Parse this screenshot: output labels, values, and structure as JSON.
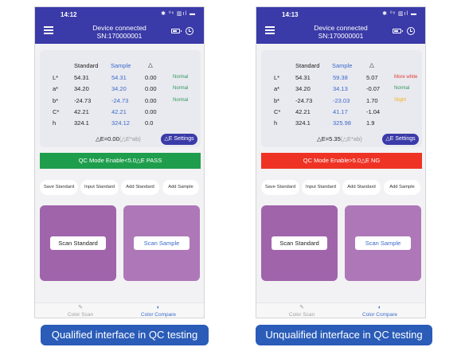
{
  "captions": {
    "left": "Qualified interface in QC testing",
    "right": "Unqualified interface in QC testing"
  },
  "screens": [
    {
      "time": "14:12",
      "status_icons": "✱ ⁰ˣ ▥ıl ▬",
      "title": "Device connected",
      "serial": "SN:170000001",
      "columns": {
        "standard": "Standard",
        "sample": "Sample",
        "delta": "△"
      },
      "rows": [
        {
          "label": "L*",
          "standard": "54.31",
          "sample": "54.31",
          "delta": "0.00",
          "status": "Normal",
          "status_color": "#2e9a5a"
        },
        {
          "label": "a*",
          "standard": "34.20",
          "sample": "34.20",
          "delta": "0.00",
          "status": "Normal",
          "status_color": "#2e9a5a"
        },
        {
          "label": "b*",
          "standard": "-24.73",
          "sample": "-24.73",
          "delta": "0.00",
          "status": "Normal",
          "status_color": "#2e9a5a"
        },
        {
          "label": "C*",
          "standard": "42.21",
          "sample": "42.21",
          "delta": "0.00",
          "status": "",
          "status_color": ""
        },
        {
          "label": "h",
          "standard": "324.1",
          "sample": "324.12",
          "delta": "0.0",
          "status": "",
          "status_color": ""
        }
      ],
      "delta_e": {
        "prefix": "△E=0.00",
        "suffix": "(△E*ab)"
      },
      "settings_label": "△E Settings",
      "qc_bar": {
        "text": "QC Mode Enable<5.0△E   PASS",
        "color": "#1e9e4c"
      },
      "actions": [
        "Save Standard",
        "Input Standard",
        "Add Standard",
        "Add Sample"
      ],
      "scan_standard": "Scan Standard",
      "scan_sample": "Scan Sample",
      "nav": {
        "scan": "Color Scan",
        "compare": "Color Compare"
      }
    },
    {
      "time": "14:13",
      "status_icons": "✱ ⁰ˣ ▥ıl ▬",
      "title": "Device connected",
      "serial": "SN:170000001",
      "columns": {
        "standard": "Standard",
        "sample": "Sample",
        "delta": "△"
      },
      "rows": [
        {
          "label": "L*",
          "standard": "54.31",
          "sample": "59.38",
          "delta": "5.07",
          "status": "More white",
          "status_color": "#e33b2c"
        },
        {
          "label": "a*",
          "standard": "34.20",
          "sample": "34.13",
          "delta": "-0.07",
          "status": "Normal",
          "status_color": "#2e9a5a"
        },
        {
          "label": "b*",
          "standard": "-24.73",
          "sample": "-23.03",
          "delta": "1.70",
          "status": "Slight",
          "status_color": "#f0b21a"
        },
        {
          "label": "C*",
          "standard": "42.21",
          "sample": "41.17",
          "delta": "-1.04",
          "status": "",
          "status_color": ""
        },
        {
          "label": "h",
          "standard": "324.1",
          "sample": "325.98",
          "delta": "1.9",
          "status": "",
          "status_color": ""
        }
      ],
      "delta_e": {
        "prefix": "△E=5.35",
        "suffix": "(△E*ab)"
      },
      "settings_label": "△E Settings",
      "qc_bar": {
        "text": "QC Mode Enable>5.0△E   NG",
        "color": "#ee3324"
      },
      "actions": [
        "Save Standard",
        "Input Standard",
        "Add Standard",
        "Add Sample"
      ],
      "scan_standard": "Scan Standard",
      "scan_sample": "Scan Sample",
      "nav": {
        "scan": "Color Scan",
        "compare": "Color Compare"
      }
    }
  ],
  "icons": {
    "menu": "menu-icon",
    "battery": "battery-icon",
    "clock": "clock-icon",
    "scan": "pen-icon",
    "compare": "drop-icon"
  }
}
